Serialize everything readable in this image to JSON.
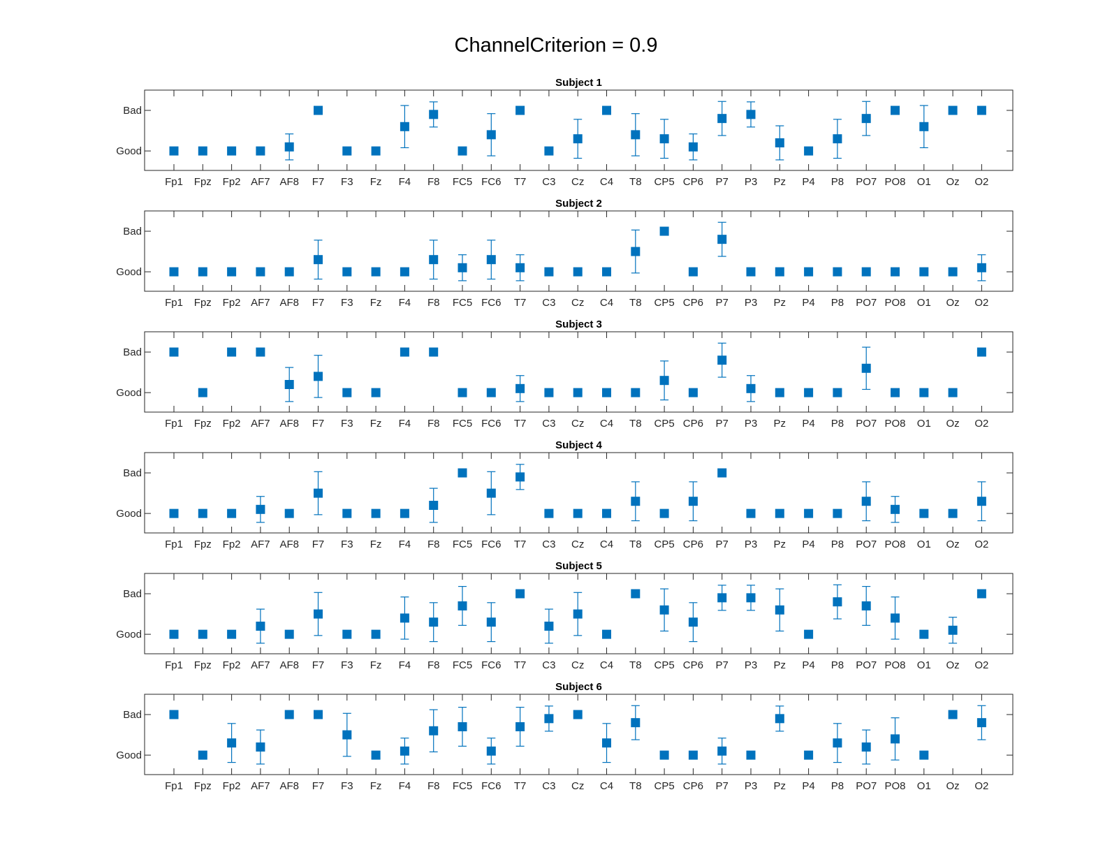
{
  "figure": {
    "suptitle": "ChannelCriterion = 0.9",
    "marker_color": "#0072BD"
  },
  "chart_data": [
    {
      "type": "scatter",
      "title": "Subject 1",
      "categories": [
        "Fp1",
        "Fpz",
        "Fp2",
        "AF7",
        "AF8",
        "F7",
        "F3",
        "Fz",
        "F4",
        "F8",
        "FC5",
        "FC6",
        "T7",
        "C3",
        "Cz",
        "C4",
        "T8",
        "CP5",
        "CP6",
        "P7",
        "P3",
        "Pz",
        "P4",
        "P8",
        "PO7",
        "PO8",
        "O1",
        "Oz",
        "O2"
      ],
      "yticks": [
        0,
        1
      ],
      "yticklabels": [
        "Good",
        "Bad"
      ],
      "ylim": [
        -0.48,
        1.5
      ],
      "values": [
        0,
        0,
        0,
        0,
        0.1,
        1,
        0,
        0,
        0.6,
        0.9,
        0,
        0.4,
        1,
        0,
        0.3,
        1,
        0.4,
        0.3,
        0.1,
        0.8,
        0.9,
        0.2,
        0,
        0.3,
        0.8,
        1,
        0.6,
        1,
        1
      ],
      "errors": [
        0,
        0,
        0,
        0,
        0.32,
        0,
        0,
        0,
        0.52,
        0.31,
        0,
        0.52,
        0,
        0,
        0.48,
        0,
        0.52,
        0.48,
        0.32,
        0.42,
        0.31,
        0.42,
        0,
        0.48,
        0.42,
        0,
        0.52,
        0,
        0
      ]
    },
    {
      "type": "scatter",
      "title": "Subject 2",
      "categories": [
        "Fp1",
        "Fpz",
        "Fp2",
        "AF7",
        "AF8",
        "F7",
        "F3",
        "Fz",
        "F4",
        "F8",
        "FC5",
        "FC6",
        "T7",
        "C3",
        "Cz",
        "C4",
        "T8",
        "CP5",
        "CP6",
        "P7",
        "P3",
        "Pz",
        "P4",
        "P8",
        "PO7",
        "PO8",
        "O1",
        "Oz",
        "O2"
      ],
      "yticks": [
        0,
        1
      ],
      "yticklabels": [
        "Good",
        "Bad"
      ],
      "ylim": [
        -0.48,
        1.5
      ],
      "values": [
        0,
        0,
        0,
        0,
        0,
        0.3,
        0,
        0,
        0,
        0.3,
        0.1,
        0.3,
        0.1,
        0,
        0,
        0,
        0.5,
        1,
        0,
        0.8,
        0,
        0,
        0,
        0,
        0,
        0,
        0,
        0,
        0.1
      ],
      "errors": [
        0,
        0,
        0,
        0,
        0,
        0.48,
        0,
        0,
        0,
        0.48,
        0.32,
        0.48,
        0.32,
        0,
        0,
        0,
        0.53,
        0,
        0,
        0.42,
        0,
        0,
        0,
        0,
        0,
        0,
        0,
        0,
        0.32
      ]
    },
    {
      "type": "scatter",
      "title": "Subject 3",
      "categories": [
        "Fp1",
        "Fpz",
        "Fp2",
        "AF7",
        "AF8",
        "F7",
        "F3",
        "Fz",
        "F4",
        "F8",
        "FC5",
        "FC6",
        "T7",
        "C3",
        "Cz",
        "C4",
        "T8",
        "CP5",
        "CP6",
        "P7",
        "P3",
        "Pz",
        "P4",
        "P8",
        "PO7",
        "PO8",
        "O1",
        "Oz",
        "O2"
      ],
      "yticks": [
        0,
        1
      ],
      "yticklabels": [
        "Good",
        "Bad"
      ],
      "ylim": [
        -0.48,
        1.5
      ],
      "values": [
        1,
        0,
        1,
        1,
        0.2,
        0.4,
        0,
        0,
        1,
        1,
        0,
        0,
        0.1,
        0,
        0,
        0,
        0,
        0.3,
        0,
        0.8,
        0.1,
        0,
        0,
        0,
        0.6,
        0,
        0,
        0,
        1
      ],
      "errors": [
        0,
        0,
        0,
        0,
        0.42,
        0.52,
        0,
        0,
        0,
        0,
        0,
        0,
        0.32,
        0,
        0,
        0,
        0,
        0.48,
        0,
        0.42,
        0.32,
        0,
        0,
        0,
        0.52,
        0,
        0,
        0,
        0
      ]
    },
    {
      "type": "scatter",
      "title": "Subject 4",
      "categories": [
        "Fp1",
        "Fpz",
        "Fp2",
        "AF7",
        "AF8",
        "F7",
        "F3",
        "Fz",
        "F4",
        "F8",
        "FC5",
        "FC6",
        "T7",
        "C3",
        "Cz",
        "C4",
        "T8",
        "CP5",
        "CP6",
        "P7",
        "P3",
        "Pz",
        "P4",
        "P8",
        "PO7",
        "PO8",
        "O1",
        "Oz",
        "O2"
      ],
      "yticks": [
        0,
        1
      ],
      "yticklabels": [
        "Good",
        "Bad"
      ],
      "ylim": [
        -0.48,
        1.5
      ],
      "values": [
        0,
        0,
        0,
        0.1,
        0,
        0.5,
        0,
        0,
        0,
        0.2,
        1,
        0.5,
        0.9,
        0,
        0,
        0,
        0.3,
        0,
        0.3,
        1,
        0,
        0,
        0,
        0,
        0.3,
        0.1,
        0,
        0,
        0.3
      ],
      "errors": [
        0,
        0,
        0,
        0.32,
        0,
        0.53,
        0,
        0,
        0,
        0.42,
        0,
        0.53,
        0.31,
        0,
        0,
        0,
        0.48,
        0,
        0.48,
        0,
        0,
        0,
        0,
        0,
        0.48,
        0.32,
        0,
        0,
        0.48
      ]
    },
    {
      "type": "scatter",
      "title": "Subject 5",
      "categories": [
        "Fp1",
        "Fpz",
        "Fp2",
        "AF7",
        "AF8",
        "F7",
        "F3",
        "Fz",
        "F4",
        "F8",
        "FC5",
        "FC6",
        "T7",
        "C3",
        "Cz",
        "C4",
        "T8",
        "CP5",
        "CP6",
        "P7",
        "P3",
        "Pz",
        "P4",
        "P8",
        "PO7",
        "PO8",
        "O1",
        "Oz",
        "O2"
      ],
      "yticks": [
        0,
        1
      ],
      "yticklabels": [
        "Good",
        "Bad"
      ],
      "ylim": [
        -0.48,
        1.5
      ],
      "values": [
        0,
        0,
        0,
        0.2,
        0,
        0.5,
        0,
        0,
        0.4,
        0.3,
        0.7,
        0.3,
        1,
        0.2,
        0.5,
        0,
        1,
        0.6,
        0.3,
        0.9,
        0.9,
        0.6,
        0,
        0.8,
        0.7,
        0.4,
        0,
        0.1,
        1
      ],
      "errors": [
        0,
        0,
        0,
        0.42,
        0,
        0.53,
        0,
        0,
        0.52,
        0.48,
        0.48,
        0.48,
        0,
        0.42,
        0.53,
        0,
        0,
        0.52,
        0.48,
        0.31,
        0.31,
        0.52,
        0,
        0.42,
        0.48,
        0.52,
        0,
        0.32,
        0
      ]
    },
    {
      "type": "scatter",
      "title": "Subject 6",
      "categories": [
        "Fp1",
        "Fpz",
        "Fp2",
        "AF7",
        "AF8",
        "F7",
        "F3",
        "Fz",
        "F4",
        "F8",
        "FC5",
        "FC6",
        "T7",
        "C3",
        "Cz",
        "C4",
        "T8",
        "CP5",
        "CP6",
        "P7",
        "P3",
        "Pz",
        "P4",
        "P8",
        "PO7",
        "PO8",
        "O1",
        "Oz",
        "O2"
      ],
      "yticks": [
        0,
        1
      ],
      "yticklabels": [
        "Good",
        "Bad"
      ],
      "ylim": [
        -0.48,
        1.5
      ],
      "values": [
        1,
        0,
        0.3,
        0.2,
        1,
        1,
        0.5,
        0,
        0.1,
        0.6,
        0.7,
        0.1,
        0.7,
        0.9,
        1,
        0.3,
        0.8,
        0,
        0,
        0.1,
        0,
        0.9,
        0,
        0.3,
        0.2,
        0.4,
        0,
        1,
        0.8
      ],
      "errors": [
        0,
        0,
        0.48,
        0.42,
        0,
        0,
        0.53,
        0,
        0.32,
        0.52,
        0.48,
        0.32,
        0.48,
        0.31,
        0,
        0.48,
        0.42,
        0,
        0,
        0.32,
        0,
        0.31,
        0,
        0.48,
        0.42,
        0.52,
        0,
        0,
        0.42
      ]
    }
  ]
}
